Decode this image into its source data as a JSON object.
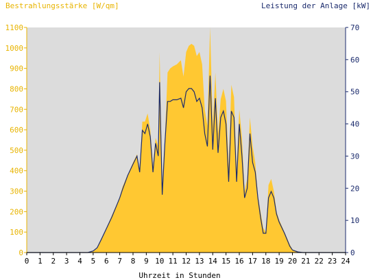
{
  "chart_data": {
    "type": "area",
    "title": "",
    "left_axis_label": "Bestrahlungsstärke [W/qm]",
    "right_axis_label": "Leistung der Anlage [kW]",
    "xlabel": "Uhrzeit in Stunden",
    "xlim": [
      0,
      24
    ],
    "ylim_left": [
      0,
      1100
    ],
    "ylim_right": [
      0,
      70
    ],
    "x_ticks": [
      "0",
      "1",
      "2",
      "3",
      "4",
      "5",
      "6",
      "7",
      "8",
      "9",
      "10",
      "11",
      "12",
      "13",
      "14",
      "15",
      "16",
      "17",
      "18",
      "19",
      "20",
      "21",
      "22",
      "23",
      "24"
    ],
    "y_ticks_left": [
      "0",
      "100",
      "200",
      "300",
      "400",
      "500",
      "600",
      "700",
      "800",
      "900",
      "1000",
      "1100"
    ],
    "y_ticks_right": [
      "0",
      "10",
      "20",
      "30",
      "40",
      "50",
      "60",
      "70"
    ],
    "colors": {
      "irradiance": "#ffc832",
      "power": "#1a2a6c",
      "plot_background": "#dcdcdc",
      "left_axis": "#e8b400",
      "right_axis": "#1a2a6c"
    },
    "series": [
      {
        "name": "Bestrahlungsstärke [W/qm]",
        "axis": "left",
        "style": "filled-area",
        "points": [
          [
            0,
            0
          ],
          [
            4.6,
            0
          ],
          [
            5.0,
            5
          ],
          [
            5.3,
            20
          ],
          [
            5.6,
            60
          ],
          [
            6.0,
            120
          ],
          [
            6.4,
            180
          ],
          [
            6.8,
            240
          ],
          [
            7.0,
            270
          ],
          [
            7.2,
            320
          ],
          [
            7.6,
            380
          ],
          [
            8.0,
            440
          ],
          [
            8.3,
            480
          ],
          [
            8.5,
            400
          ],
          [
            8.7,
            640
          ],
          [
            8.9,
            640
          ],
          [
            9.1,
            680
          ],
          [
            9.3,
            600
          ],
          [
            9.5,
            420
          ],
          [
            9.7,
            560
          ],
          [
            9.9,
            520
          ],
          [
            10.0,
            980
          ],
          [
            10.2,
            330
          ],
          [
            10.4,
            560
          ],
          [
            10.6,
            880
          ],
          [
            10.8,
            900
          ],
          [
            11.0,
            910
          ],
          [
            11.3,
            920
          ],
          [
            11.6,
            940
          ],
          [
            11.8,
            860
          ],
          [
            12.0,
            980
          ],
          [
            12.2,
            1010
          ],
          [
            12.4,
            1020
          ],
          [
            12.6,
            1010
          ],
          [
            12.8,
            960
          ],
          [
            13.0,
            980
          ],
          [
            13.2,
            920
          ],
          [
            13.4,
            700
          ],
          [
            13.6,
            620
          ],
          [
            13.8,
            1100
          ],
          [
            14.0,
            620
          ],
          [
            14.2,
            880
          ],
          [
            14.4,
            580
          ],
          [
            14.6,
            750
          ],
          [
            14.8,
            800
          ],
          [
            15.0,
            740
          ],
          [
            15.2,
            420
          ],
          [
            15.4,
            820
          ],
          [
            15.6,
            760
          ],
          [
            15.8,
            400
          ],
          [
            16.0,
            700
          ],
          [
            16.2,
            560
          ],
          [
            16.4,
            300
          ],
          [
            16.6,
            360
          ],
          [
            16.8,
            660
          ],
          [
            17.0,
            520
          ],
          [
            17.2,
            440
          ],
          [
            17.4,
            280
          ],
          [
            17.6,
            200
          ],
          [
            17.8,
            120
          ],
          [
            18.0,
            100
          ],
          [
            18.2,
            330
          ],
          [
            18.4,
            360
          ],
          [
            18.6,
            300
          ],
          [
            18.8,
            200
          ],
          [
            19.0,
            160
          ],
          [
            19.4,
            100
          ],
          [
            19.8,
            40
          ],
          [
            20.0,
            15
          ],
          [
            20.4,
            5
          ],
          [
            20.8,
            0
          ],
          [
            24,
            0
          ]
        ]
      },
      {
        "name": "Leistung der Anlage [kW]",
        "axis": "right",
        "style": "line",
        "points": [
          [
            0,
            0
          ],
          [
            4.6,
            0
          ],
          [
            5.0,
            0.5
          ],
          [
            5.3,
            1.5
          ],
          [
            5.6,
            4
          ],
          [
            6.0,
            7.5
          ],
          [
            6.4,
            11
          ],
          [
            6.8,
            15
          ],
          [
            7.0,
            17
          ],
          [
            7.2,
            19.5
          ],
          [
            7.6,
            24
          ],
          [
            8.0,
            27.5
          ],
          [
            8.3,
            30
          ],
          [
            8.5,
            25
          ],
          [
            8.7,
            38
          ],
          [
            8.9,
            37
          ],
          [
            9.1,
            40
          ],
          [
            9.3,
            36
          ],
          [
            9.5,
            25
          ],
          [
            9.7,
            34
          ],
          [
            9.9,
            30
          ],
          [
            10.0,
            53
          ],
          [
            10.2,
            18
          ],
          [
            10.4,
            34
          ],
          [
            10.6,
            47
          ],
          [
            10.8,
            47
          ],
          [
            11.0,
            47.5
          ],
          [
            11.3,
            47.5
          ],
          [
            11.6,
            48
          ],
          [
            11.8,
            45
          ],
          [
            12.0,
            50
          ],
          [
            12.2,
            51
          ],
          [
            12.4,
            51
          ],
          [
            12.6,
            50
          ],
          [
            12.8,
            47
          ],
          [
            13.0,
            48
          ],
          [
            13.2,
            45
          ],
          [
            13.4,
            37
          ],
          [
            13.6,
            33
          ],
          [
            13.8,
            55
          ],
          [
            14.0,
            32
          ],
          [
            14.2,
            48
          ],
          [
            14.4,
            31
          ],
          [
            14.6,
            42
          ],
          [
            14.8,
            44
          ],
          [
            15.0,
            40
          ],
          [
            15.2,
            22
          ],
          [
            15.4,
            44
          ],
          [
            15.6,
            42
          ],
          [
            15.8,
            22
          ],
          [
            16.0,
            40
          ],
          [
            16.2,
            30
          ],
          [
            16.4,
            17
          ],
          [
            16.6,
            20
          ],
          [
            16.8,
            37
          ],
          [
            17.0,
            28
          ],
          [
            17.2,
            25
          ],
          [
            17.4,
            17
          ],
          [
            17.6,
            11
          ],
          [
            17.8,
            6
          ],
          [
            18.0,
            6
          ],
          [
            18.2,
            17
          ],
          [
            18.4,
            19
          ],
          [
            18.6,
            17
          ],
          [
            18.8,
            12
          ],
          [
            19.0,
            9.5
          ],
          [
            19.4,
            6
          ],
          [
            19.8,
            2
          ],
          [
            20.0,
            0.8
          ],
          [
            20.4,
            0.2
          ],
          [
            20.8,
            0
          ],
          [
            24,
            0
          ]
        ]
      }
    ],
    "grid": false,
    "legend": "none"
  }
}
